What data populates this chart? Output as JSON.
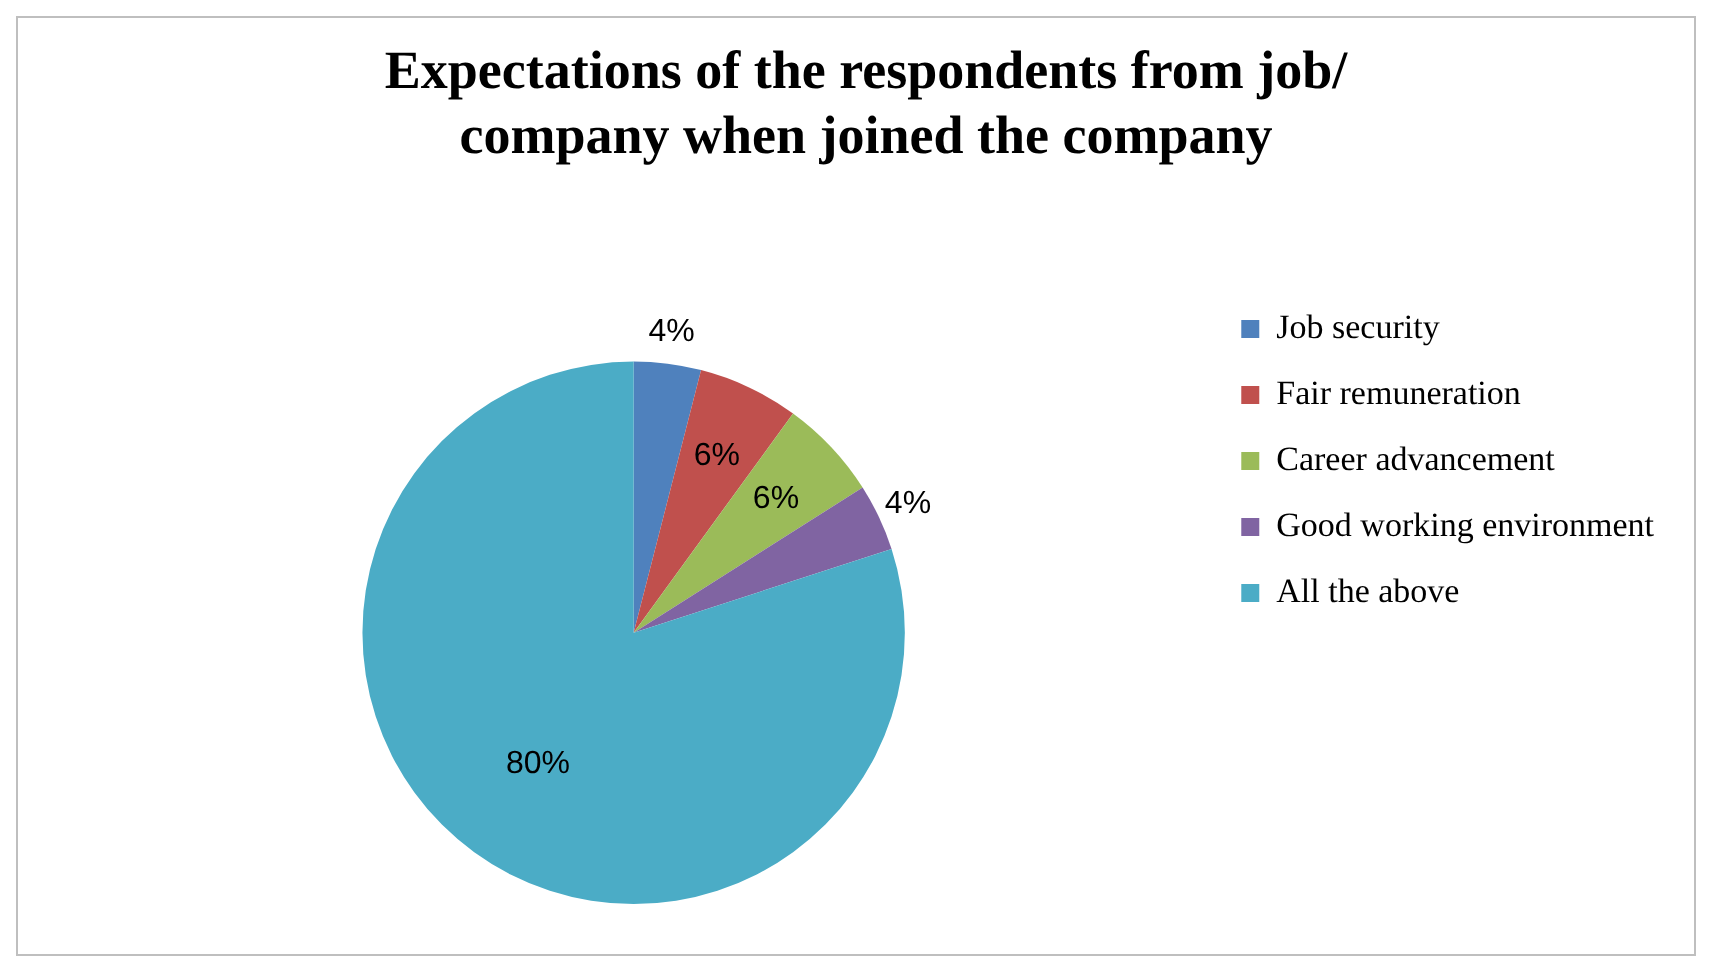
{
  "chart_data": {
    "type": "pie",
    "title": "Expectations of the respondents from job/ company when joined the company",
    "categories": [
      "Job security",
      "Fair remuneration",
      "Career advancement",
      "Good working environment",
      "All the above"
    ],
    "values": [
      4,
      6,
      6,
      4,
      80
    ],
    "colors": [
      "#4f81bd",
      "#c0504d",
      "#9bbb59",
      "#8064a2",
      "#4bacc6"
    ],
    "value_labels": [
      "4%",
      "6%",
      "6%",
      "4%",
      "80%"
    ],
    "legend": "right"
  }
}
